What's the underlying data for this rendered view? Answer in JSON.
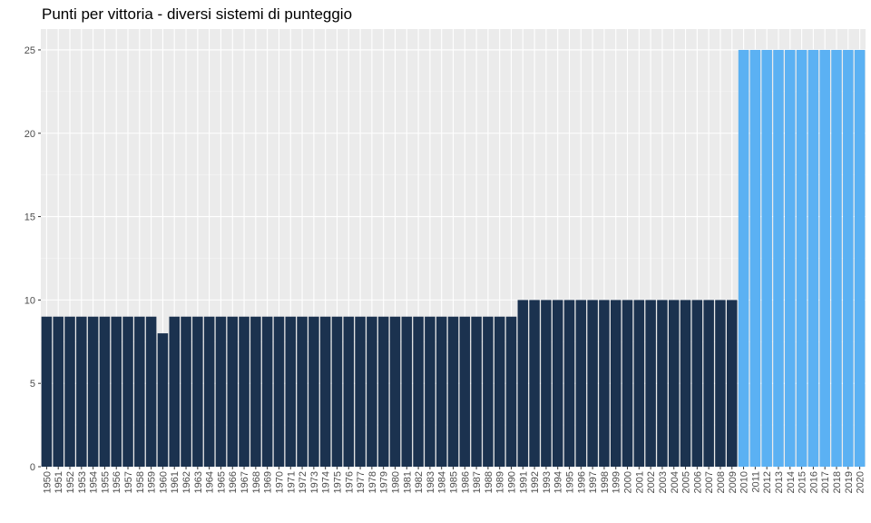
{
  "chart_data": {
    "type": "bar",
    "title": "Punti per vittoria - diversi sistemi di punteggio",
    "xlabel": "",
    "ylabel": "",
    "ylim": [
      0,
      26.25
    ],
    "yticks": [
      0,
      5,
      10,
      15,
      20,
      25
    ],
    "categories": [
      "1950",
      "1951",
      "1952",
      "1953",
      "1954",
      "1955",
      "1956",
      "1957",
      "1958",
      "1959",
      "1960",
      "1961",
      "1962",
      "1963",
      "1964",
      "1965",
      "1966",
      "1967",
      "1968",
      "1969",
      "1970",
      "1971",
      "1972",
      "1973",
      "1974",
      "1975",
      "1976",
      "1977",
      "1978",
      "1979",
      "1980",
      "1981",
      "1982",
      "1983",
      "1984",
      "1985",
      "1986",
      "1987",
      "1988",
      "1989",
      "1990",
      "1991",
      "1992",
      "1993",
      "1994",
      "1995",
      "1996",
      "1997",
      "1998",
      "1999",
      "2000",
      "2001",
      "2002",
      "2003",
      "2004",
      "2005",
      "2006",
      "2007",
      "2008",
      "2009",
      "2010",
      "2011",
      "2012",
      "2013",
      "2014",
      "2015",
      "2016",
      "2017",
      "2018",
      "2019",
      "2020"
    ],
    "values": [
      9,
      9,
      9,
      9,
      9,
      9,
      9,
      9,
      9,
      9,
      8,
      9,
      9,
      9,
      9,
      9,
      9,
      9,
      9,
      9,
      9,
      9,
      9,
      9,
      9,
      9,
      9,
      9,
      9,
      9,
      9,
      9,
      9,
      9,
      9,
      9,
      9,
      9,
      9,
      9,
      9,
      10,
      10,
      10,
      10,
      10,
      10,
      10,
      10,
      10,
      10,
      10,
      10,
      10,
      10,
      10,
      10,
      10,
      10,
      10,
      25,
      25,
      25,
      25,
      25,
      25,
      25,
      25,
      25,
      25,
      25
    ],
    "colors": {
      "dark": "#1b324f",
      "light": "#5bb1f3",
      "panel": "#ebebeb",
      "grid_major": "#ffffff",
      "grid_minor": "#f5f5f5"
    },
    "light_from": "2010",
    "grid": true,
    "legend": "none"
  }
}
